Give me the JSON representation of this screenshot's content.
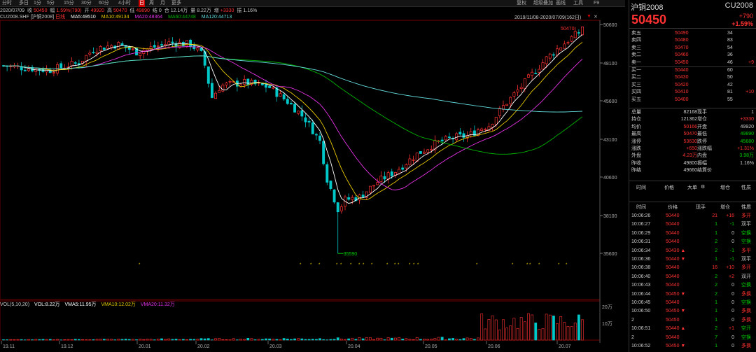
{
  "toolbar": {
    "left": [
      "分时",
      "多日",
      "1分",
      "5分",
      "15分",
      "30分",
      "60分",
      "4小时",
      "日",
      "周",
      "月",
      "更多"
    ],
    "active": 8,
    "right": [
      "复权",
      "超级叠加",
      "画线",
      "工具",
      "F9"
    ]
  },
  "quote": {
    "date": "2020/07/09",
    "close_label": "收",
    "close": "50450",
    "chg_label": "幅",
    "chg": "1.59%(790)",
    "open_label": "开",
    "open": "49920",
    "high_label": "高",
    "high": "50470",
    "low_label": "低",
    "low": "49890",
    "amt_label": "结",
    "amt": "0",
    "vol_label": "合",
    "vol": "12.14万",
    "cur_label": "量",
    "cur": "8.22万",
    "oi_label": "增",
    "oi": "+3330",
    "amp_label": "振",
    "amp": "1.16%"
  },
  "chartinfo": {
    "code": "CU2008.SHF [沪铜2008]",
    "flag": "日线",
    "ma5": "MA5:49510",
    "ma10": "MA10:49134",
    "ma20": "MA20:48364",
    "ma60": "MA60:44748",
    "ma120": "MA120:44713",
    "range": "2019/11/08-2020/07/09(162日)",
    "gear": "▼",
    "close": "✕"
  },
  "price_axis": [
    "50600",
    "48100",
    "45600",
    "43100",
    "40600",
    "38100",
    "35600"
  ],
  "price_labels": {
    "high": "50470",
    "low": "35590"
  },
  "vol_axis": [
    "20万",
    "10万"
  ],
  "volinfo": {
    "a": "VOL(5,10,20)",
    "b": "VOL:8.22万",
    "c": "VMA5:11.95万",
    "d": "VMA10:12.02万",
    "e": "VMA20:11.32万"
  },
  "dates": [
    "19.11",
    "19.12",
    "20.01",
    "20.02",
    "20.03",
    "20.04",
    "20.05",
    "20.06",
    "20.07"
  ],
  "colors": {
    "up": "#ff3232",
    "down": "#00c8c8",
    "ma5": "#ffffff",
    "ma10": "#e6c800",
    "ma20": "#e632e6",
    "ma60": "#00b400",
    "ma120": "#64dcdc"
  },
  "panel": {
    "title": "沪铜2008",
    "code": "CU2008",
    "price": "50450",
    "chg": "+790",
    "pct": "+1.59%",
    "book": [
      {
        "l": "卖五",
        "p": "50490",
        "v": "34",
        "d": ""
      },
      {
        "l": "卖四",
        "p": "50480",
        "v": "83",
        "d": ""
      },
      {
        "l": "卖三",
        "p": "50470",
        "v": "54",
        "d": ""
      },
      {
        "l": "卖二",
        "p": "50460",
        "v": "36",
        "d": ""
      },
      {
        "l": "卖一",
        "p": "50450",
        "v": "46",
        "d": "+9"
      },
      {
        "l": "买一",
        "p": "50440",
        "v": "60",
        "d": ""
      },
      {
        "l": "买二",
        "p": "50430",
        "v": "50",
        "d": ""
      },
      {
        "l": "买三",
        "p": "50420",
        "v": "42",
        "d": ""
      },
      {
        "l": "买四",
        "p": "50410",
        "v": "81",
        "d": "+10"
      },
      {
        "l": "买五",
        "p": "50400",
        "v": "55",
        "d": ""
      }
    ],
    "stats": [
      [
        "总量",
        "82168",
        "现手",
        "1"
      ],
      [
        "持仓",
        "121362",
        "增仓",
        "+3330"
      ],
      [
        "均价",
        "50166",
        "开盘",
        "49920"
      ],
      [
        "最高",
        "50470",
        "最低",
        "49890"
      ],
      [
        "涨停",
        "53630",
        "跌停",
        "45680"
      ],
      [
        "涨跌",
        "+650",
        "涨跌幅",
        "+1.31%"
      ],
      [
        "外盘",
        "4.23万",
        "内盘",
        "3.98万"
      ],
      [
        "昨收",
        "49800",
        "振幅",
        "1.16%"
      ],
      [
        "昨结",
        "49660",
        "结算价",
        ""
      ]
    ],
    "tabs": [
      "时间",
      "价格",
      "大单",
      "增仓",
      "性质"
    ],
    "head": [
      "时间",
      "价格",
      "现手",
      "增仓",
      "性质"
    ],
    "ticks": [
      [
        "10:06:26",
        "50440",
        "",
        "21",
        "+16",
        "多开"
      ],
      [
        "10:06:27",
        "50440",
        "",
        "1",
        "-1",
        "双平"
      ],
      [
        "10:06:29",
        "50440",
        "",
        "1",
        "0",
        "空换"
      ],
      [
        "10:06:31",
        "50440",
        "",
        "2",
        "0",
        "空换"
      ],
      [
        "10:06:34",
        "50430",
        "▲",
        "2",
        "-1",
        "多平"
      ],
      [
        "10:06:36",
        "50440",
        "▼",
        "1",
        "-1",
        "双平"
      ],
      [
        "10:06:38",
        "50440",
        "",
        "16",
        "+10",
        "多开"
      ],
      [
        "10:06:40",
        "50440",
        "",
        "2",
        "+2",
        "双开"
      ],
      [
        "10:06:43",
        "50440",
        "",
        "2",
        "0",
        "空换"
      ],
      [
        "10:06:44",
        "50450",
        "▼",
        "2",
        "0",
        "多换"
      ],
      [
        "10:06:45",
        "50440",
        "",
        "1",
        "0",
        "空换"
      ],
      [
        "10:06:50",
        "50450",
        "▼",
        "1",
        "0",
        "多换"
      ],
      [
        "2",
        "50450",
        "",
        "1",
        "0",
        "多换"
      ],
      [
        "10:06:51",
        "50440",
        "▲",
        "2",
        "+1",
        "空开"
      ],
      [
        "2",
        "50440",
        "",
        "7",
        "0",
        "空换"
      ],
      [
        "10:06:52",
        "50450",
        "▼",
        "1",
        "0",
        "多换"
      ]
    ]
  }
}
